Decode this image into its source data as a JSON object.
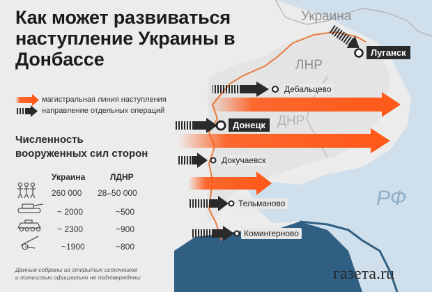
{
  "title": "Как может развиваться наступление Украины в Донбассе",
  "regions": {
    "ukraine": "Украина",
    "lnr": "ЛНР",
    "dnr": "ДНР",
    "rf": "РФ"
  },
  "cities": {
    "lugansk": "Луганск",
    "debaltsevo": "Дебальцево",
    "donetsk": "Донецк",
    "dokuchaevsk": "Докучаевск",
    "telmanovo": "Тельманово",
    "kominternovo": "Комингерново"
  },
  "legend": {
    "main_line": "магистральная линия наступления",
    "separate_ops": "направление отдельных операций"
  },
  "forces": {
    "title_line1": "Численность",
    "title_line2": "вооруженных сил сторон",
    "col_ukraine": "Украина",
    "col_ldnr": "ЛДНР",
    "rows": [
      {
        "icon": "soldiers-icon",
        "ukraine": "260 000",
        "ldnr": "28–50 000"
      },
      {
        "icon": "tank-icon",
        "ukraine": "~ 2000",
        "ldnr": "~500"
      },
      {
        "icon": "armored-vehicle-icon",
        "ukraine": "~ 2300",
        "ldnr": "~900"
      },
      {
        "icon": "artillery-icon",
        "ukraine": "~1900",
        "ldnr": "~800"
      }
    ]
  },
  "footnote_line1": "Данные собраны из открытых источников",
  "footnote_line2": "и полностью официально не подтверждены",
  "logo": "газета.ru",
  "colors": {
    "orange": "#ff5a1a",
    "dark": "#2a2a2a",
    "sea": "#2f5f83",
    "rf_land": "#cfdfec",
    "front_line": "#e87a3c"
  }
}
